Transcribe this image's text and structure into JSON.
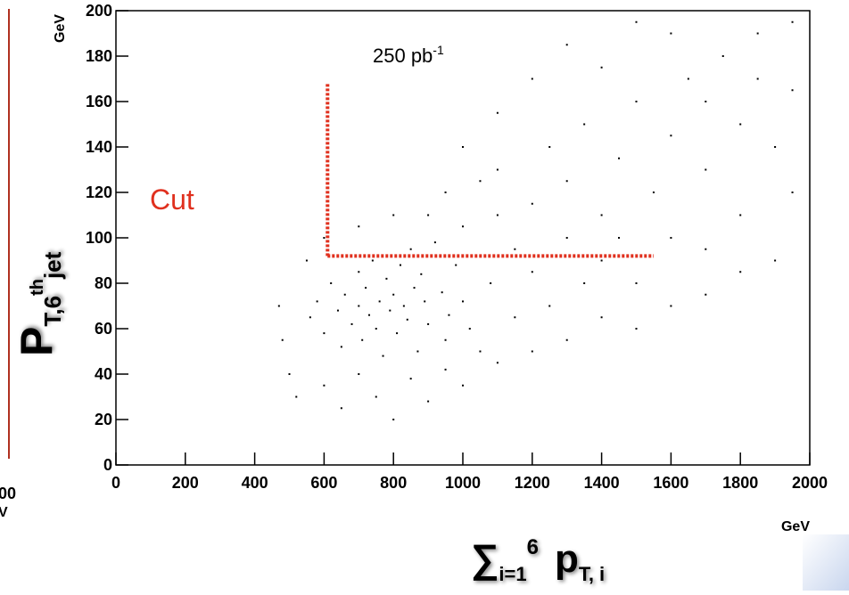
{
  "chart_data": {
    "type": "scatter",
    "color": "#000000",
    "x": [
      560,
      580,
      600,
      620,
      640,
      650,
      660,
      680,
      700,
      700,
      710,
      720,
      730,
      740,
      750,
      760,
      770,
      780,
      790,
      800,
      810,
      820,
      830,
      840,
      850,
      860,
      870,
      880,
      890,
      900,
      920,
      940,
      960,
      980,
      1000,
      1000,
      1020,
      1050,
      1080,
      1100,
      900,
      950,
      1050,
      1100,
      1150,
      1200,
      1250,
      1300,
      1300,
      1350,
      1400,
      1450,
      1500,
      1550,
      1600,
      1650,
      1700,
      1750,
      1800,
      1850,
      1900,
      1950,
      1200,
      1400,
      1600,
      1800,
      1950,
      1700,
      1500,
      500,
      520,
      600,
      650,
      700,
      750,
      800,
      850,
      900,
      950,
      1000,
      1100,
      1200,
      1300,
      1400,
      1500,
      1600,
      1700,
      1800,
      1900,
      480,
      470,
      550,
      600,
      700,
      800,
      1000,
      1100,
      1200,
      1300,
      1400,
      1600,
      1500,
      1700,
      1850,
      1950,
      1250,
      1350,
      1450,
      1150,
      1050,
      950
    ],
    "values": [
      65,
      72,
      58,
      80,
      68,
      52,
      75,
      62,
      85,
      70,
      55,
      78,
      66,
      90,
      60,
      72,
      48,
      82,
      68,
      75,
      58,
      88,
      70,
      64,
      95,
      78,
      50,
      84,
      72,
      62,
      98,
      76,
      66,
      88,
      105,
      72,
      60,
      92,
      80,
      110,
      110,
      120,
      125,
      130,
      95,
      115,
      140,
      100,
      125,
      150,
      110,
      135,
      160,
      120,
      145,
      170,
      130,
      180,
      150,
      190,
      140,
      165,
      85,
      90,
      100,
      110,
      120,
      95,
      80,
      40,
      30,
      35,
      25,
      40,
      30,
      20,
      38,
      28,
      42,
      35,
      45,
      50,
      55,
      65,
      60,
      70,
      75,
      85,
      90,
      55,
      70,
      90,
      100,
      105,
      110,
      140,
      155,
      170,
      185,
      175,
      190,
      195,
      160,
      170,
      195,
      70,
      80,
      100,
      65,
      50,
      55
    ],
    "xlim": [
      0,
      2000
    ],
    "ylim": [
      0,
      200
    ],
    "xticks": [
      0,
      200,
      400,
      600,
      800,
      1000,
      1200,
      1400,
      1600,
      1800,
      2000
    ],
    "yticks": [
      0,
      20,
      40,
      60,
      80,
      100,
      120,
      140,
      160,
      180,
      200
    ],
    "x_unit": "GeV",
    "y_unit": "GeV",
    "luminosity": {
      "text": "250  pb",
      "sup": "-1"
    },
    "cut_label": "Cut",
    "cut_color": "#e0301e",
    "cut": {
      "x": 610,
      "y": 92,
      "x_end": 1550,
      "y_end": 168
    },
    "x_label": {
      "symbol": "∑",
      "sub": "i=1",
      "sup": "6",
      "main": "p",
      "main_sub": "T, i"
    },
    "y_label": {
      "main": "P",
      "sub": "T,6",
      "sup": "th",
      "sub2": "jet"
    },
    "partial_panel": {
      "x_tick": "00",
      "x_unit": "V"
    }
  }
}
